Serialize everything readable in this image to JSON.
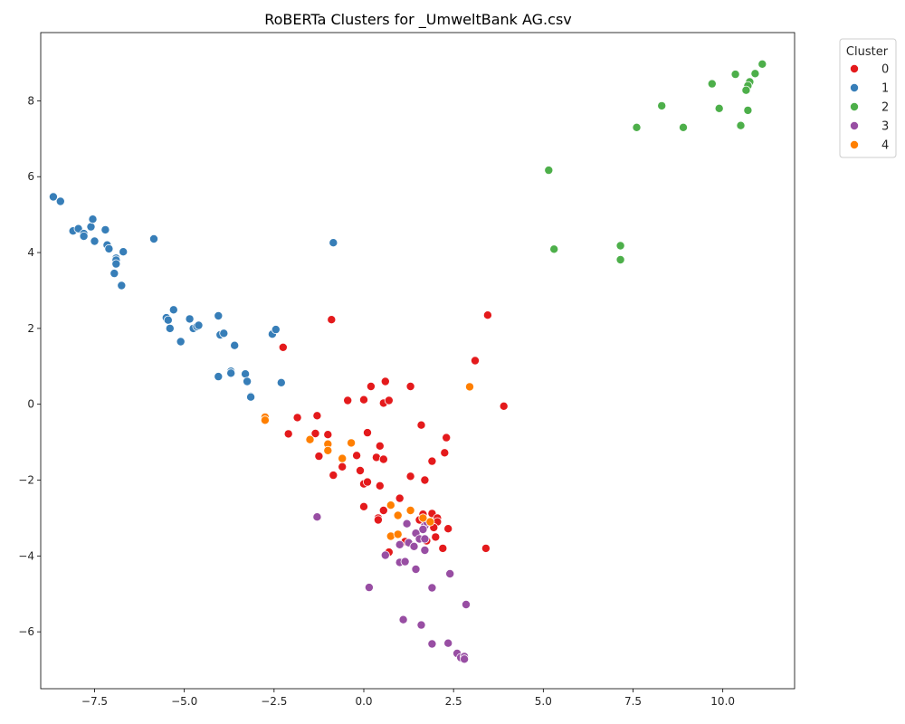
{
  "chart_data": {
    "type": "scatter",
    "title": "RoBERTa Clusters for _UmweltBank AG.csv",
    "xlabel": "",
    "ylabel": "",
    "xlim": [
      -9.0,
      12.0
    ],
    "ylim": [
      -7.5,
      9.8
    ],
    "xticks": [
      -7.5,
      -5.0,
      -2.5,
      0.0,
      2.5,
      5.0,
      7.5,
      10.0
    ],
    "xtick_labels": [
      "−7.5",
      "−5.0",
      "−2.5",
      "0.0",
      "2.5",
      "5.0",
      "7.5",
      "10.0"
    ],
    "yticks": [
      -6,
      -4,
      -2,
      0,
      2,
      4,
      6,
      8
    ],
    "ytick_labels": [
      "−6",
      "−4",
      "−2",
      "0",
      "2",
      "4",
      "6",
      "8"
    ],
    "grid": false,
    "legend": {
      "title": "Cluster",
      "placement": "outside-top-right"
    },
    "series": [
      {
        "name": "0",
        "color": "#e41a1c",
        "points": [
          [
            -0.9,
            2.23
          ],
          [
            -2.25,
            1.5
          ],
          [
            3.45,
            2.35
          ],
          [
            3.1,
            1.15
          ],
          [
            3.9,
            -0.05
          ],
          [
            -0.45,
            0.1
          ],
          [
            0.0,
            0.12
          ],
          [
            0.2,
            0.47
          ],
          [
            0.55,
            0.03
          ],
          [
            0.6,
            0.6
          ],
          [
            0.7,
            0.1
          ],
          [
            1.3,
            0.47
          ],
          [
            -1.3,
            -0.3
          ],
          [
            -1.85,
            -0.35
          ],
          [
            -2.1,
            -0.78
          ],
          [
            -1.35,
            -0.77
          ],
          [
            -1.0,
            -0.8
          ],
          [
            0.1,
            -0.75
          ],
          [
            1.6,
            -0.55
          ],
          [
            2.3,
            -0.88
          ],
          [
            -1.25,
            -1.37
          ],
          [
            0.45,
            -1.1
          ],
          [
            0.35,
            -1.4
          ],
          [
            0.55,
            -1.45
          ],
          [
            -0.2,
            -1.35
          ],
          [
            -0.6,
            -1.65
          ],
          [
            -0.1,
            -1.75
          ],
          [
            -0.85,
            -1.87
          ],
          [
            1.9,
            -1.5
          ],
          [
            2.25,
            -1.28
          ],
          [
            1.3,
            -1.9
          ],
          [
            1.7,
            -2.0
          ],
          [
            0.0,
            -2.1
          ],
          [
            0.1,
            -2.05
          ],
          [
            0.45,
            -2.15
          ],
          [
            1.0,
            -2.48
          ],
          [
            0.0,
            -2.7
          ],
          [
            0.4,
            -3.0
          ],
          [
            0.4,
            -3.05
          ],
          [
            0.55,
            -2.8
          ],
          [
            1.55,
            -3.05
          ],
          [
            1.65,
            -2.9
          ],
          [
            1.9,
            -2.88
          ],
          [
            2.05,
            -3.0
          ],
          [
            2.05,
            -3.1
          ],
          [
            1.95,
            -3.25
          ],
          [
            2.35,
            -3.28
          ],
          [
            2.0,
            -3.5
          ],
          [
            1.75,
            -3.6
          ],
          [
            1.15,
            -3.62
          ],
          [
            0.7,
            -3.9
          ],
          [
            2.2,
            -3.8
          ],
          [
            3.4,
            -3.8
          ]
        ]
      },
      {
        "name": "1",
        "color": "#377eb8",
        "points": [
          [
            -8.65,
            5.47
          ],
          [
            -8.45,
            5.35
          ],
          [
            -8.1,
            4.57
          ],
          [
            -7.95,
            4.63
          ],
          [
            -7.8,
            4.5
          ],
          [
            -7.8,
            4.43
          ],
          [
            -7.6,
            4.68
          ],
          [
            -7.55,
            4.88
          ],
          [
            -7.5,
            4.3
          ],
          [
            -7.2,
            4.6
          ],
          [
            -7.15,
            4.2
          ],
          [
            -7.1,
            4.1
          ],
          [
            -6.9,
            3.85
          ],
          [
            -6.9,
            3.8
          ],
          [
            -6.9,
            3.7
          ],
          [
            -6.95,
            3.45
          ],
          [
            -6.75,
            3.13
          ],
          [
            -6.7,
            4.02
          ],
          [
            -5.85,
            4.36
          ],
          [
            -0.85,
            4.26
          ],
          [
            -5.5,
            2.28
          ],
          [
            -5.45,
            2.22
          ],
          [
            -5.4,
            2.0
          ],
          [
            -5.3,
            2.49
          ],
          [
            -5.1,
            1.65
          ],
          [
            -4.85,
            2.25
          ],
          [
            -4.75,
            2.0
          ],
          [
            -4.65,
            2.05
          ],
          [
            -4.6,
            2.08
          ],
          [
            -4.05,
            2.33
          ],
          [
            -4.0,
            1.83
          ],
          [
            -3.9,
            1.87
          ],
          [
            -3.6,
            1.55
          ],
          [
            -4.05,
            0.73
          ],
          [
            -3.7,
            0.87
          ],
          [
            -3.7,
            0.82
          ],
          [
            -3.3,
            0.8
          ],
          [
            -3.25,
            0.6
          ],
          [
            -3.15,
            0.21
          ],
          [
            -3.15,
            0.19
          ],
          [
            -2.55,
            1.85
          ],
          [
            -2.45,
            1.97
          ],
          [
            -2.3,
            0.57
          ]
        ]
      },
      {
        "name": "2",
        "color": "#4daf4a",
        "points": [
          [
            11.1,
            8.97
          ],
          [
            10.9,
            8.72
          ],
          [
            10.35,
            8.7
          ],
          [
            10.75,
            8.5
          ],
          [
            10.7,
            8.4
          ],
          [
            10.65,
            8.28
          ],
          [
            9.7,
            8.45
          ],
          [
            9.9,
            7.8
          ],
          [
            10.7,
            7.75
          ],
          [
            8.3,
            7.87
          ],
          [
            10.5,
            7.35
          ],
          [
            8.9,
            7.3
          ],
          [
            7.6,
            7.3
          ],
          [
            5.15,
            6.17
          ],
          [
            5.3,
            4.09
          ],
          [
            7.15,
            4.18
          ],
          [
            7.15,
            3.81
          ]
        ]
      },
      {
        "name": "3",
        "color": "#984ea3",
        "points": [
          [
            -1.3,
            -2.97
          ],
          [
            1.2,
            -3.15
          ],
          [
            1.7,
            -3.2
          ],
          [
            1.75,
            -3.1
          ],
          [
            1.65,
            -3.3
          ],
          [
            1.45,
            -3.4
          ],
          [
            1.55,
            -3.55
          ],
          [
            1.25,
            -3.65
          ],
          [
            1.4,
            -3.75
          ],
          [
            1.0,
            -3.7
          ],
          [
            1.7,
            -3.55
          ],
          [
            1.7,
            -3.85
          ],
          [
            0.6,
            -3.98
          ],
          [
            1.0,
            -4.17
          ],
          [
            1.15,
            -4.15
          ],
          [
            1.45,
            -4.35
          ],
          [
            2.4,
            -4.47
          ],
          [
            0.15,
            -4.83
          ],
          [
            1.9,
            -4.84
          ],
          [
            2.85,
            -5.28
          ],
          [
            1.1,
            -5.68
          ],
          [
            1.6,
            -5.82
          ],
          [
            1.9,
            -6.32
          ],
          [
            2.35,
            -6.3
          ],
          [
            2.6,
            -6.57
          ],
          [
            2.7,
            -6.68
          ],
          [
            2.8,
            -6.65
          ],
          [
            2.8,
            -6.72
          ]
        ]
      },
      {
        "name": "4",
        "color": "#ff7f00",
        "points": [
          [
            2.95,
            0.46
          ],
          [
            -2.75,
            -0.34
          ],
          [
            -2.75,
            -0.42
          ],
          [
            -1.5,
            -0.93
          ],
          [
            -1.0,
            -1.05
          ],
          [
            -1.0,
            -1.22
          ],
          [
            -0.35,
            -1.02
          ],
          [
            -0.6,
            -1.43
          ],
          [
            0.75,
            -2.66
          ],
          [
            1.3,
            -2.8
          ],
          [
            0.95,
            -2.93
          ],
          [
            1.65,
            -3.0
          ],
          [
            1.85,
            -3.1
          ],
          [
            0.75,
            -3.48
          ],
          [
            0.95,
            -3.43
          ]
        ]
      }
    ]
  }
}
